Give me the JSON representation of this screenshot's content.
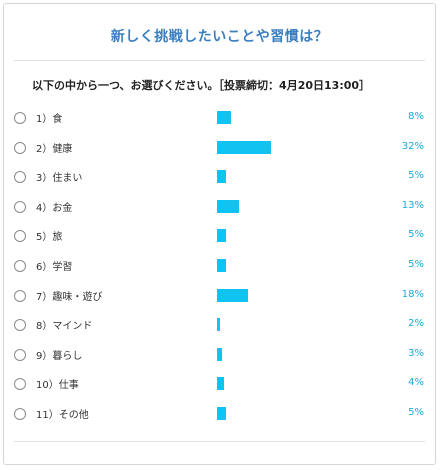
{
  "title": "新しく挑戦したいことや習慣は？",
  "question": "以下の中から一つ、お選びください。［投票締切：4月20日13:00］",
  "colors": {
    "title": "#3a7fc1",
    "bar": "#11c3f0",
    "percent": "#1aa9dd"
  },
  "options": [
    {
      "label": "1）食",
      "percent_text": "8%",
      "value": 8
    },
    {
      "label": "2）健康",
      "percent_text": "32%",
      "value": 32
    },
    {
      "label": "3）住まい",
      "percent_text": "5%",
      "value": 5
    },
    {
      "label": "4）お金",
      "percent_text": "13%",
      "value": 13
    },
    {
      "label": "5）旅",
      "percent_text": "5%",
      "value": 5
    },
    {
      "label": "6）学習",
      "percent_text": "5%",
      "value": 5
    },
    {
      "label": "7）趣味・遊び",
      "percent_text": "18%",
      "value": 18
    },
    {
      "label": "8）マインド",
      "percent_text": "2%",
      "value": 2
    },
    {
      "label": "9）暮らし",
      "percent_text": "3%",
      "value": 3
    },
    {
      "label": "10）仕事",
      "percent_text": "4%",
      "value": 4
    },
    {
      "label": "11）その他",
      "percent_text": "5%",
      "value": 5
    }
  ]
}
